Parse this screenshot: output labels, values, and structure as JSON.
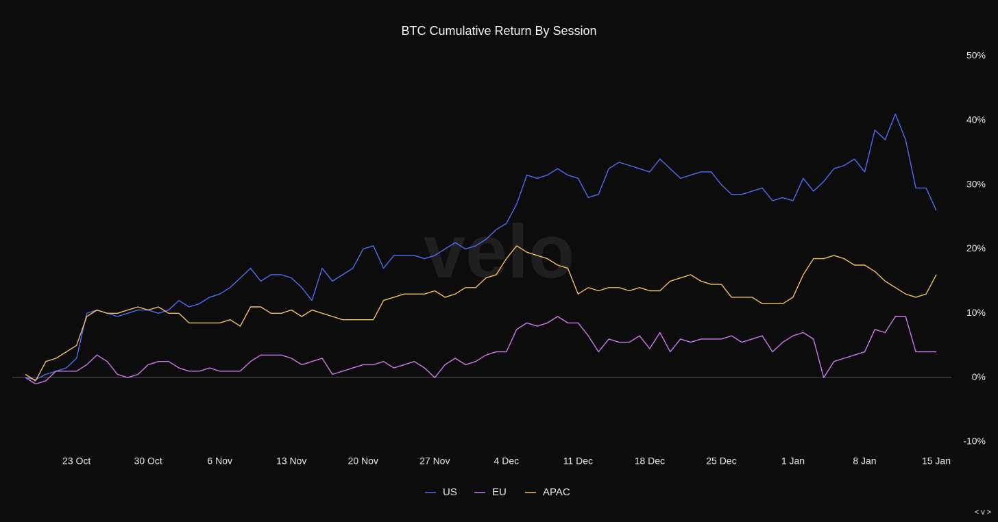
{
  "chart_data": {
    "type": "line",
    "title": "BTC Cumulative Return By Session",
    "watermark": "velo",
    "widget": "< v >",
    "categories": [
      null,
      null,
      null,
      null,
      null,
      "23 Oct",
      null,
      null,
      null,
      null,
      null,
      null,
      "30 Oct",
      null,
      null,
      null,
      null,
      null,
      null,
      "6 Nov",
      null,
      null,
      null,
      null,
      null,
      null,
      "13 Nov",
      null,
      null,
      null,
      null,
      null,
      null,
      "20 Nov",
      null,
      null,
      null,
      null,
      null,
      null,
      "27 Nov",
      null,
      null,
      null,
      null,
      null,
      null,
      "4 Dec",
      null,
      null,
      null,
      null,
      null,
      null,
      "11 Dec",
      null,
      null,
      null,
      null,
      null,
      null,
      "18 Dec",
      null,
      null,
      null,
      null,
      null,
      null,
      "25 Dec",
      null,
      null,
      null,
      null,
      null,
      null,
      "1 Jan",
      null,
      null,
      null,
      null,
      null,
      null,
      "8 Jan",
      null,
      null,
      null,
      null,
      null,
      null,
      "15 Jan"
    ],
    "series": [
      {
        "name": "US",
        "color": "#4d6ef5",
        "values": [
          0,
          -0.3,
          0.5,
          1,
          1.5,
          3,
          10,
          10.5,
          10,
          9.5,
          10,
          10.5,
          10.5,
          10,
          10.5,
          12,
          11,
          11.5,
          12.5,
          13,
          14,
          15.5,
          17,
          15,
          16,
          16,
          15.5,
          14,
          12,
          17,
          15,
          16,
          17,
          20,
          20.5,
          17,
          19,
          19,
          19,
          18.5,
          19,
          20,
          21,
          20,
          20.5,
          21.5,
          23,
          24,
          27,
          31.5,
          31,
          31.5,
          32.5,
          31.5,
          31,
          28,
          28.5,
          32.5,
          33.5,
          33,
          32.5,
          32,
          34,
          32.5,
          31,
          31.5,
          32,
          32,
          30,
          28.5,
          28.5,
          29,
          29.5,
          27.5,
          28,
          27.5,
          31,
          29,
          30.5,
          32.5,
          33,
          34,
          32,
          38.5,
          37,
          41,
          37,
          29.5,
          29.5,
          26
        ]
      },
      {
        "name": "EU",
        "color": "#cf78ee",
        "values": [
          0,
          -1,
          -0.5,
          1,
          1,
          1,
          2,
          3.5,
          2.5,
          0.5,
          0,
          0.5,
          2,
          2.5,
          2.5,
          1.5,
          1,
          1,
          1.5,
          1,
          1,
          1,
          2.5,
          3.5,
          3.5,
          3.5,
          3,
          2,
          2.5,
          3,
          0.5,
          1,
          1.5,
          2,
          2,
          2.5,
          1.5,
          2,
          2.5,
          1.5,
          0,
          2,
          3,
          2,
          2.5,
          3.5,
          4,
          4,
          7.5,
          8.5,
          8,
          8.5,
          9.5,
          8.5,
          8.5,
          6.5,
          4,
          6,
          5.5,
          5.5,
          6.5,
          4.5,
          7,
          4,
          6,
          5.5,
          6,
          6,
          6,
          6.5,
          5.5,
          6,
          6.5,
          4,
          5.5,
          6.5,
          7,
          6,
          0,
          2.5,
          3,
          3.5,
          4,
          7.5,
          7,
          9.5,
          9.5,
          4,
          4,
          4
        ]
      },
      {
        "name": "APAC",
        "color": "#f4c15c",
        "values": [
          0.5,
          -0.5,
          2.5,
          3,
          4,
          5,
          9.5,
          10.5,
          10,
          10,
          10.5,
          11,
          10.5,
          11,
          10,
          10,
          8.5,
          8.5,
          8.5,
          8.5,
          9,
          8,
          11,
          11,
          10,
          10,
          10.5,
          9.5,
          10.5,
          10,
          9.5,
          9,
          9,
          9,
          9,
          12,
          12.5,
          13,
          13,
          13,
          13.5,
          12.5,
          13,
          14,
          14,
          15.5,
          16,
          18.5,
          20.5,
          19.5,
          19,
          18.5,
          17.5,
          17,
          13,
          14,
          13.5,
          14,
          14,
          13.5,
          14,
          13.5,
          13.5,
          15,
          15.5,
          16,
          15,
          14.5,
          14.5,
          12.5,
          12.5,
          12.5,
          11.5,
          11.5,
          11.5,
          12.5,
          16,
          18.5,
          18.5,
          19,
          18.5,
          17.5,
          17.5,
          16.5,
          15,
          14,
          13,
          12.5,
          13,
          16
        ]
      }
    ],
    "ylim": [
      -10,
      50
    ],
    "yticks": [
      {
        "value": -10,
        "label": "-10%"
      },
      {
        "value": 0,
        "label": "0%"
      },
      {
        "value": 10,
        "label": "10%"
      },
      {
        "value": 20,
        "label": "20%"
      },
      {
        "value": 30,
        "label": "30%"
      },
      {
        "value": 40,
        "label": "40%"
      },
      {
        "value": 50,
        "label": "50%"
      }
    ],
    "zero_line": true,
    "legend": "bottom"
  }
}
